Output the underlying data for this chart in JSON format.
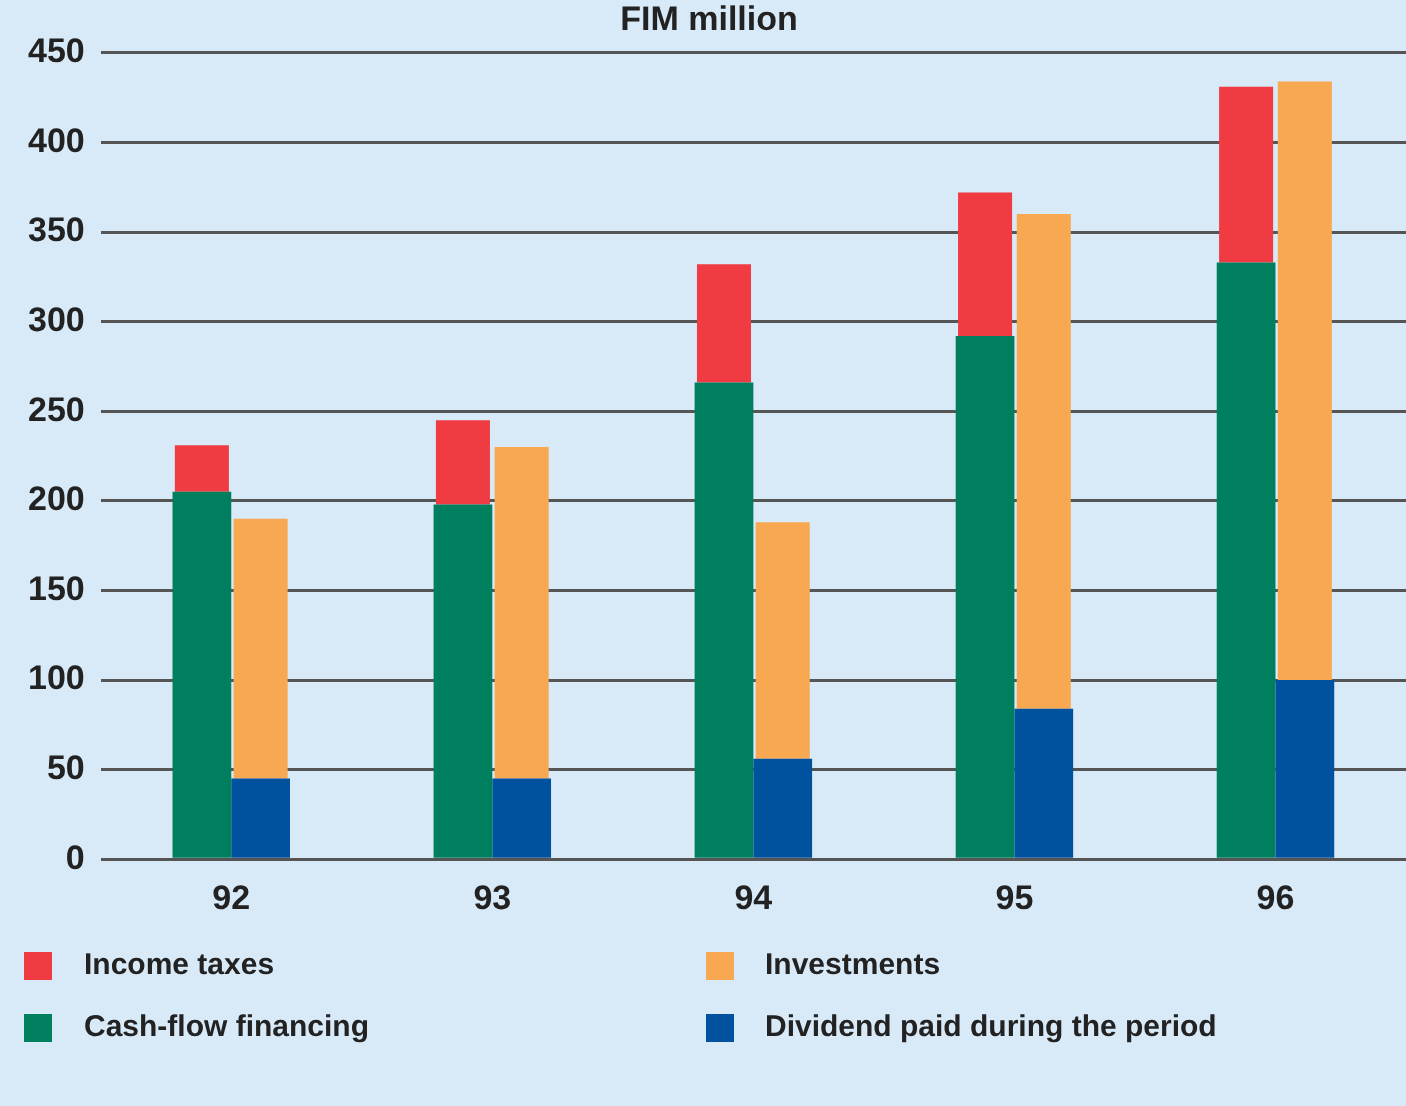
{
  "chart_data": {
    "type": "bar",
    "title": "FIM million",
    "categories": [
      "92",
      "93",
      "94",
      "95",
      "96"
    ],
    "series": [
      {
        "name": "Cash-flow financing",
        "color": "#007f5f",
        "values": [
          205,
          198,
          266,
          292,
          333
        ]
      },
      {
        "name": "Income taxes",
        "color": "#ef3b41",
        "base": [
          205,
          198,
          266,
          292,
          333
        ],
        "values": [
          26,
          47,
          66,
          80,
          98
        ]
      },
      {
        "name": "Dividend paid during the period",
        "color": "#00519e",
        "values": [
          45,
          45,
          56,
          84,
          100
        ]
      },
      {
        "name": "Investments",
        "color": "#f9a852",
        "base": [
          45,
          45,
          56,
          84,
          100
        ],
        "values": [
          145,
          185,
          132,
          276,
          334
        ]
      }
    ],
    "ylim": [
      0,
      450
    ],
    "yticks": [
      0,
      50,
      100,
      150,
      200,
      250,
      300,
      350,
      400,
      450
    ],
    "grid": "y",
    "legend": "bottom"
  }
}
